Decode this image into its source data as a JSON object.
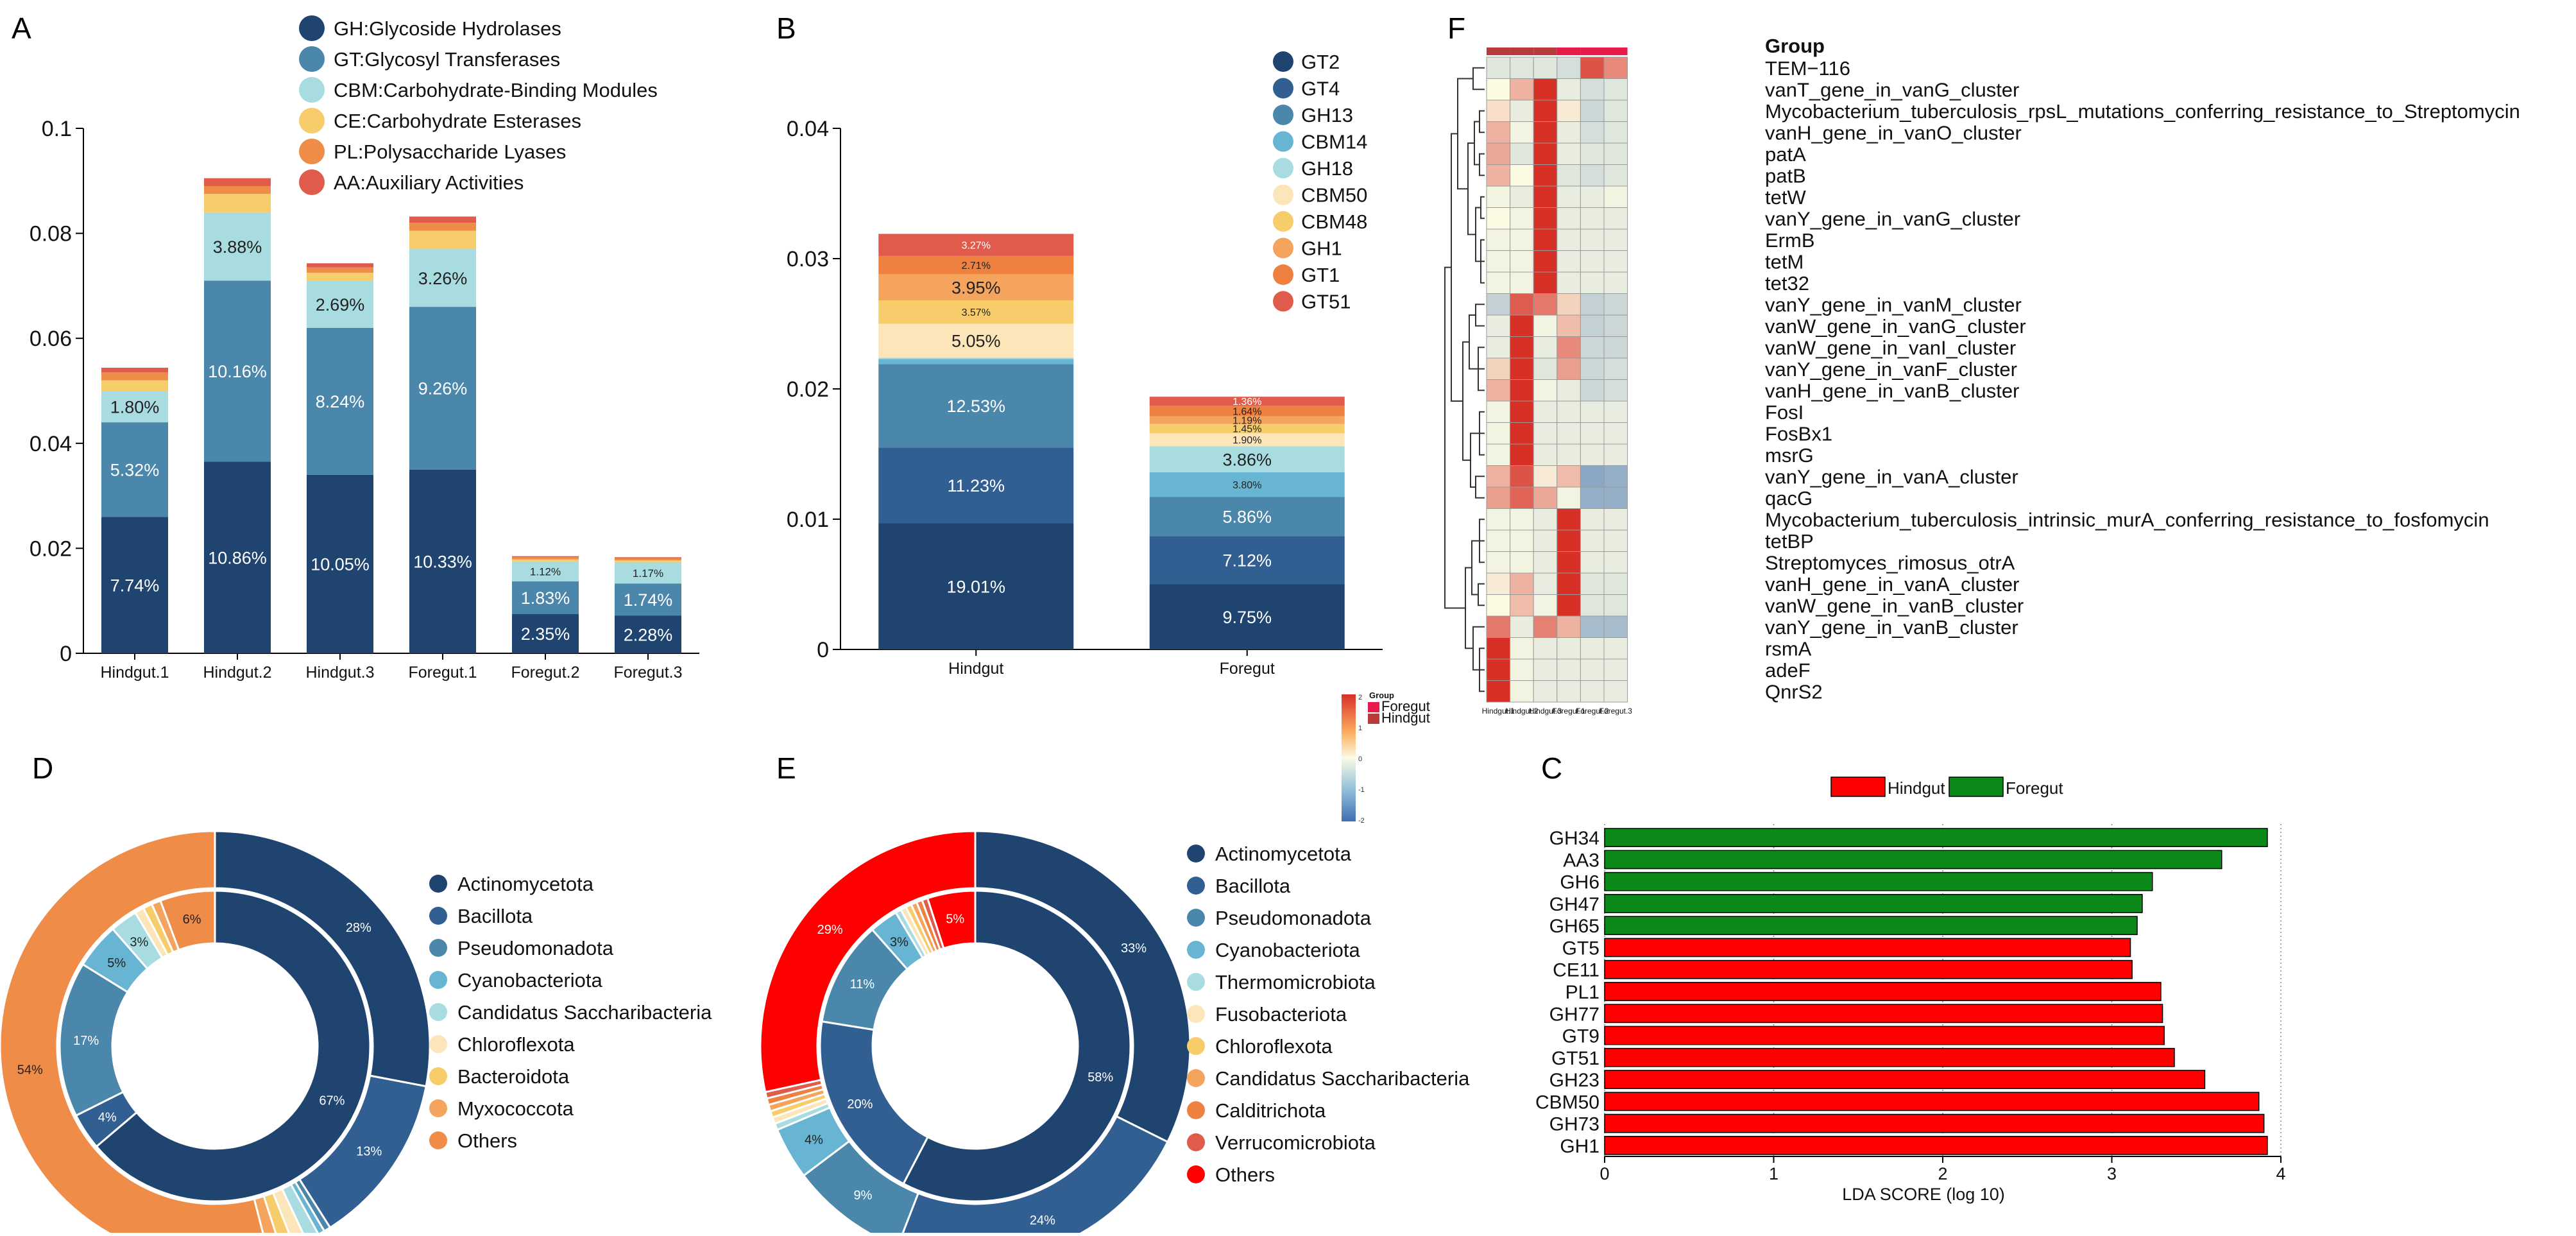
{
  "chart_data": [
    {
      "panel": "A",
      "type": "bar",
      "stacked": true,
      "categories": [
        "Hindgut.1",
        "Hindgut.2",
        "Hindgut.3",
        "Foregut.1",
        "Foregut.2",
        "Foregut.3"
      ],
      "ylim": [
        0,
        0.1
      ],
      "yticks": [
        0,
        0.02,
        0.04,
        0.06,
        0.08,
        0.1
      ],
      "ytick_labels": [
        "0",
        "0.02",
        "0.04",
        "0.06",
        "0.08",
        "0.1"
      ],
      "series": [
        {
          "name": "GH:Glycoside Hydrolases",
          "color": "#1f4470",
          "values": [
            0.026,
            0.0365,
            0.034,
            0.035,
            0.0075,
            0.0072
          ],
          "labels": [
            "7.74%",
            "10.86%",
            "10.05%",
            "10.33%",
            "2.35%",
            "2.28%"
          ]
        },
        {
          "name": "GT:Glycosyl Transferases",
          "color": "#4b87aa",
          "values": [
            0.018,
            0.0345,
            0.028,
            0.031,
            0.0062,
            0.0061
          ],
          "labels": [
            "5.32%",
            "10.16%",
            "8.24%",
            "9.26%",
            "1.83%",
            "1.74%"
          ]
        },
        {
          "name": "CBM:Carbohydrate-Binding Modules",
          "color": "#a8dce0",
          "values": [
            0.006,
            0.013,
            0.009,
            0.011,
            0.0038,
            0.004
          ],
          "labels": [
            "1.80%",
            "3.88%",
            "2.69%",
            "3.26%",
            "1.12%",
            "1.17%"
          ]
        },
        {
          "name": "CE:Carbohydrate Esterases",
          "color": "#f7cd6c",
          "values": [
            0.002,
            0.0035,
            0.0015,
            0.0035,
            0.0004,
            0.0004
          ],
          "labels": [
            "",
            "",
            "",
            "",
            "",
            ""
          ]
        },
        {
          "name": "PL:Polysaccharide Lyases",
          "color": "#ee8c48",
          "values": [
            0.0015,
            0.0015,
            0.001,
            0.0015,
            0.0004,
            0.0004
          ],
          "labels": [
            "",
            "",
            "",
            "",
            "",
            ""
          ]
        },
        {
          "name": "AA:Auxiliary Activities",
          "color": "#e05b4b",
          "values": [
            0.0009,
            0.0015,
            0.0008,
            0.0012,
            0.0002,
            0.0002
          ],
          "labels": [
            "",
            "",
            "",
            "",
            "",
            ""
          ]
        }
      ]
    },
    {
      "panel": "B",
      "type": "bar",
      "stacked": true,
      "categories": [
        "Hindgut",
        "Foregut"
      ],
      "ylim": [
        0,
        0.04
      ],
      "yticks": [
        0,
        0.01,
        0.02,
        0.03,
        0.04
      ],
      "ytick_labels": [
        "0",
        "0.01",
        "0.02",
        "0.03",
        "0.04"
      ],
      "series": [
        {
          "name": "GT2",
          "color": "#1f4470",
          "values": [
            0.0097,
            0.005
          ],
          "labels": [
            "19.01%",
            "9.75%"
          ]
        },
        {
          "name": "GT4",
          "color": "#325f92",
          "values": [
            0.0058,
            0.0037
          ],
          "labels": [
            "11.23%",
            "7.12%"
          ]
        },
        {
          "name": "GH13",
          "color": "#4b87aa",
          "values": [
            0.0064,
            0.003
          ],
          "labels": [
            "12.53%",
            "5.86%"
          ]
        },
        {
          "name": "CBM14",
          "color": "#67b4d3",
          "values": [
            0.0004,
            0.0019
          ],
          "labels": [
            "",
            "3.80%"
          ]
        },
        {
          "name": "GH18",
          "color": "#a8dce0",
          "values": [
            0.0001,
            0.002
          ],
          "labels": [
            "",
            "3.86%"
          ]
        },
        {
          "name": "CBM50",
          "color": "#fce5b8",
          "values": [
            0.0026,
            0.001
          ],
          "labels": [
            "5.05%",
            "1.90%"
          ]
        },
        {
          "name": "CBM48",
          "color": "#f7cd6c",
          "values": [
            0.0018,
            0.0007
          ],
          "labels": [
            "3.57%",
            "1.45%"
          ]
        },
        {
          "name": "GH1",
          "color": "#f4a45c",
          "values": [
            0.002,
            0.0006
          ],
          "labels": [
            "3.95%",
            "1.19%"
          ]
        },
        {
          "name": "GT1",
          "color": "#ee8040",
          "values": [
            0.0014,
            0.0008
          ],
          "labels": [
            "2.71%",
            "1.64%"
          ]
        },
        {
          "name": "GT51",
          "color": "#e05b4b",
          "values": [
            0.0017,
            0.0007
          ],
          "labels": [
            "3.27%",
            "1.36%"
          ]
        }
      ]
    },
    {
      "panel": "F",
      "type": "heatmap",
      "columns": [
        "Hindgut.1",
        "Hindgut.2",
        "Hindgut.3",
        "Foregut.1",
        "Foregut.2",
        "Foregut.3"
      ],
      "group_header": "Group",
      "groups": [
        "Hindgut",
        "Hindgut",
        "Hindgut",
        "Foregut",
        "Foregut",
        "Foregut"
      ],
      "rows": [
        "TEM−116",
        "vanT_gene_in_vanG_cluster",
        "Mycobacterium_tuberculosis_rpsL_mutations_conferring_resistance_to_Streptomycin",
        "vanH_gene_in_vanO_cluster",
        "patA",
        "patB",
        "tetW",
        "vanY_gene_in_vanG_cluster",
        "ErmB",
        "tetM",
        "tet32",
        "vanY_gene_in_vanM_cluster",
        "vanW_gene_in_vanG_cluster",
        "vanW_gene_in_vanI_cluster",
        "vanY_gene_in_vanF_cluster",
        "vanH_gene_in_vanB_cluster",
        "FosI",
        "FosBx1",
        "msrG",
        "vanY_gene_in_vanA_cluster",
        "qacG",
        "Mycobacterium_tuberculosis_intrinsic_murA_conferring_resistance_to_fosfomycin",
        "tetBP",
        "Streptomyces_rimosus_otrA",
        "vanH_gene_in_vanA_cluster",
        "vanW_gene_in_vanB_cluster",
        "vanY_gene_in_vanB_cluster",
        "rsmA",
        "adeF",
        "QnrS2"
      ],
      "values": [
        [
          -0.3,
          -0.3,
          -0.3,
          -0.4,
          1.6,
          1.0
        ],
        [
          0.0,
          0.6,
          2.0,
          -0.2,
          -0.4,
          -0.3
        ],
        [
          0.2,
          -0.2,
          2.0,
          0.1,
          -0.5,
          -0.3
        ],
        [
          0.6,
          -0.1,
          2.0,
          -0.2,
          -0.4,
          -0.3
        ],
        [
          0.7,
          -0.3,
          2.0,
          -0.2,
          -0.3,
          -0.3
        ],
        [
          0.6,
          0.0,
          2.0,
          -0.3,
          -0.4,
          -0.3
        ],
        [
          -0.1,
          -0.2,
          2.0,
          -0.2,
          -0.2,
          -0.1
        ],
        [
          0.0,
          -0.1,
          2.0,
          -0.2,
          -0.2,
          -0.2
        ],
        [
          -0.1,
          -0.1,
          2.0,
          -0.2,
          -0.2,
          -0.2
        ],
        [
          -0.1,
          -0.1,
          2.0,
          -0.2,
          -0.2,
          -0.2
        ],
        [
          -0.1,
          -0.1,
          2.0,
          -0.2,
          -0.2,
          -0.2
        ],
        [
          -0.6,
          1.5,
          1.2,
          0.3,
          -0.6,
          -0.5
        ],
        [
          -0.2,
          2.0,
          -0.1,
          0.5,
          -0.6,
          -0.5
        ],
        [
          -0.2,
          2.0,
          -0.2,
          1.0,
          -0.5,
          -0.5
        ],
        [
          0.3,
          2.0,
          -0.3,
          0.8,
          -0.5,
          -0.4
        ],
        [
          0.6,
          2.0,
          -0.1,
          -0.2,
          -0.5,
          -0.4
        ],
        [
          -0.1,
          2.0,
          -0.2,
          -0.2,
          -0.2,
          -0.2
        ],
        [
          -0.1,
          2.0,
          -0.2,
          -0.2,
          -0.2,
          -0.2
        ],
        [
          -0.1,
          2.0,
          -0.2,
          -0.2,
          -0.2,
          -0.2
        ],
        [
          0.6,
          1.6,
          0.1,
          0.5,
          -1.2,
          -1.1
        ],
        [
          0.8,
          1.4,
          0.7,
          -0.1,
          -1.1,
          -1.1
        ],
        [
          -0.1,
          -0.1,
          -0.2,
          2.0,
          -0.2,
          -0.2
        ],
        [
          -0.1,
          -0.1,
          -0.2,
          2.0,
          -0.2,
          -0.2
        ],
        [
          -0.1,
          -0.1,
          -0.2,
          2.0,
          -0.2,
          -0.2
        ],
        [
          0.1,
          0.6,
          -0.2,
          2.0,
          -0.3,
          -0.3
        ],
        [
          0.0,
          0.5,
          -0.1,
          2.0,
          -0.3,
          -0.3
        ],
        [
          1.2,
          -0.2,
          1.1,
          0.6,
          -0.9,
          -0.9
        ],
        [
          2.0,
          -0.1,
          -0.2,
          -0.2,
          -0.2,
          -0.2
        ],
        [
          2.0,
          -0.1,
          -0.2,
          -0.2,
          -0.2,
          -0.2
        ],
        [
          2.0,
          -0.1,
          -0.2,
          -0.2,
          -0.2,
          -0.2
        ]
      ],
      "scale": {
        "range": [
          -2,
          2
        ],
        "ticks": [
          "2",
          "1",
          "0",
          "-1",
          "-2"
        ],
        "colors": [
          "#3f6fb0",
          "#fbfbe4",
          "#d73027"
        ]
      },
      "legend": {
        "title": "Group",
        "entries": [
          {
            "name": "Foregut",
            "color": "#e8194b"
          },
          {
            "name": "Hindgut",
            "color": "#b93a3a"
          }
        ]
      }
    },
    {
      "panel": "C",
      "type": "bar",
      "orientation": "horizontal",
      "xlabel": "LDA SCORE (log 10)",
      "xlim": [
        0,
        4
      ],
      "xticks": [
        "0",
        "1",
        "2",
        "3",
        "4"
      ],
      "legend": [
        {
          "name": "Hindgut",
          "color": "#ff0000"
        },
        {
          "name": "Foregut",
          "color": "#0b8a19"
        }
      ],
      "categories": [
        "GH34",
        "AA3",
        "GH6",
        "GH47",
        "GH65",
        "GT5",
        "CE11",
        "PL1",
        "GH77",
        "GT9",
        "GT51",
        "GH23",
        "CBM50",
        "GH73",
        "GH1"
      ],
      "groups": [
        "Foregut",
        "Foregut",
        "Foregut",
        "Foregut",
        "Foregut",
        "Hindgut",
        "Hindgut",
        "Hindgut",
        "Hindgut",
        "Hindgut",
        "Hindgut",
        "Hindgut",
        "Hindgut",
        "Hindgut",
        "Hindgut"
      ],
      "values": [
        3.92,
        3.65,
        3.24,
        3.18,
        3.15,
        3.11,
        3.12,
        3.29,
        3.3,
        3.31,
        3.37,
        3.55,
        3.87,
        3.9,
        3.92
      ]
    },
    {
      "panel": "D",
      "type": "pie",
      "style": "double-donut",
      "legend": [
        "Actinomycetota",
        "Bacillota",
        "Pseudomonadota",
        "Cyanobacteriota",
        "Candidatus Saccharibacteria",
        "Chloroflexota",
        "Bacteroidota",
        "Myxococcota",
        "Others"
      ],
      "colors": [
        "#1f4470",
        "#325f92",
        "#4b87aa",
        "#67b4d3",
        "#a8dce0",
        "#fce5b8",
        "#f7cd6c",
        "#f4a45c",
        "#ee8c48"
      ],
      "outer": {
        "values": [
          28,
          13,
          0.5,
          0.5,
          1,
          1,
          1,
          1,
          54
        ],
        "labels": [
          "28%",
          "13%",
          "",
          "",
          "",
          "",
          "",
          "",
          "54%"
        ]
      },
      "inner": {
        "values": [
          67,
          4,
          17,
          5,
          3,
          1,
          1,
          1,
          6
        ],
        "labels": [
          "67%",
          "4%",
          "17%",
          "5%",
          "3%",
          "",
          "",
          "",
          "6%"
        ]
      }
    },
    {
      "panel": "E",
      "type": "pie",
      "style": "double-donut",
      "legend": [
        "Actinomycetota",
        "Bacillota",
        "Pseudomonadota",
        "Cyanobacteriota",
        "Thermomicrobiota",
        "Fusobacteriota",
        "Chloroflexota",
        "Candidatus Saccharibacteria",
        "Calditrichota",
        "Verrucomicrobiota",
        "Others"
      ],
      "colors": [
        "#1f4470",
        "#325f92",
        "#4b87aa",
        "#67b4d3",
        "#a8dce0",
        "#fce5b8",
        "#f7cd6c",
        "#f4a45c",
        "#ee8040",
        "#e05b4b",
        "#ff0000"
      ],
      "outer": {
        "values": [
          33,
          24,
          9,
          4,
          0.5,
          0.5,
          0.5,
          0.5,
          0.5,
          0.5,
          29
        ],
        "labels": [
          "33%",
          "24%",
          "9%",
          "4%",
          "",
          "",
          "",
          "",
          "",
          "",
          "29%"
        ]
      },
      "inner": {
        "values": [
          58,
          20,
          11,
          3,
          0.6,
          0.6,
          0.6,
          0.6,
          0.6,
          0.6,
          5
        ],
        "labels": [
          "58%",
          "20%",
          "11%",
          "3%",
          "",
          "",
          "",
          "",
          "",
          "",
          "5%"
        ]
      }
    }
  ]
}
